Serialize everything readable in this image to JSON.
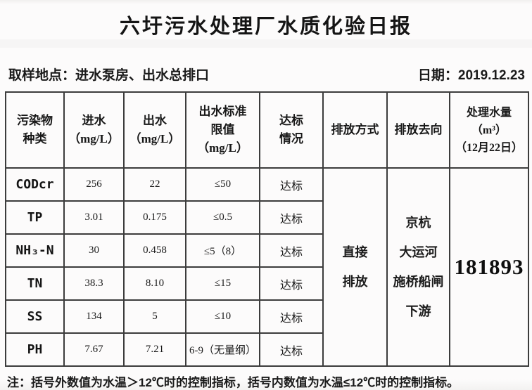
{
  "title": "六圩污水处理厂水质化验日报",
  "meta": {
    "sampling_location": "取样地点：进水泵房、出水总排口",
    "date": "日期：2019.12.23"
  },
  "table": {
    "headers": [
      "污染物\n种类",
      "进水\n（mg/L）",
      "出水\n（mg/L）",
      "出水标准\n限值\n（mg/L）",
      "达标\n情况",
      "排放方式",
      "排放去向",
      "处理水量\n（m³）\n（12月22日）"
    ],
    "rows": [
      {
        "pollutant": "CODcr",
        "inflow": "256",
        "outflow": "22",
        "limit": "≤50",
        "status": "达标"
      },
      {
        "pollutant": "TP",
        "inflow": "3.01",
        "outflow": "0.175",
        "limit": "≤0.5",
        "status": "达标"
      },
      {
        "pollutant": "NH₃-N",
        "inflow": "30",
        "outflow": "0.458",
        "limit": "≤5（8）",
        "status": "达标"
      },
      {
        "pollutant": "TN",
        "inflow": "38.3",
        "outflow": "8.10",
        "limit": "≤15",
        "status": "达标"
      },
      {
        "pollutant": "SS",
        "inflow": "134",
        "outflow": "5",
        "limit": "≤10",
        "status": "达标"
      },
      {
        "pollutant": "PH",
        "inflow": "7.67",
        "outflow": "7.21",
        "limit": "6-9（无量纲）",
        "status": "达标"
      }
    ],
    "merged": {
      "discharge_mode": "直接\n排放",
      "discharge_destination": "京杭\n大运河\n施桥船闸\n下游",
      "treated_volume": "181893"
    }
  },
  "footnote": "注：括号外数值为水温＞12℃时的控制指标，括号内数值为水温≤12℃时的控制指标。",
  "colors": {
    "border": "#3c3c3c",
    "text": "#1b1b1b",
    "background": "#fbfafa"
  }
}
